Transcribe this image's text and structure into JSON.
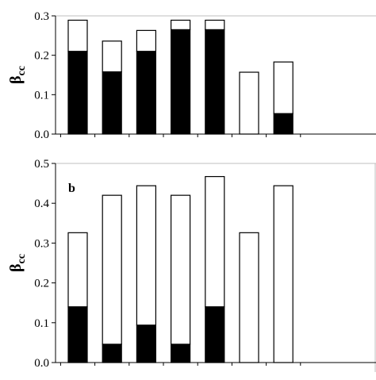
{
  "chart_data": [
    {
      "type": "bar",
      "stacked": true,
      "panel_label": "",
      "ylabel": "β",
      "ylabel_subscript": "cc",
      "ylim": [
        0,
        0.3
      ],
      "yticks": [
        "0.0",
        "0.1",
        "0.2",
        "0.3"
      ],
      "categories": [
        "",
        "",
        "",
        "",
        "",
        "",
        ""
      ],
      "series": [
        {
          "color": "#000000",
          "values": [
            0.21,
            0.158,
            0.21,
            0.265,
            0.265,
            0.0,
            0.052
          ]
        },
        {
          "color": "#ffffff",
          "values": [
            0.079,
            0.078,
            0.053,
            0.024,
            0.024,
            0.157,
            0.131
          ]
        }
      ],
      "grid": false,
      "legend": "none"
    },
    {
      "type": "bar",
      "stacked": true,
      "panel_label": "b",
      "ylabel": "β",
      "ylabel_subscript": "cc",
      "ylim": [
        0,
        0.5
      ],
      "yticks": [
        "0.0",
        "0.1",
        "0.2",
        "0.3",
        "0.4",
        "0.5"
      ],
      "categories": [
        "",
        "",
        "",
        "",
        "",
        "",
        ""
      ],
      "series": [
        {
          "color": "#000000",
          "values": [
            0.14,
            0.046,
            0.094,
            0.046,
            0.14,
            0.0,
            0.0
          ]
        },
        {
          "color": "#ffffff",
          "values": [
            0.186,
            0.374,
            0.35,
            0.374,
            0.327,
            0.326,
            0.444
          ]
        }
      ],
      "grid": false,
      "legend": "none"
    }
  ]
}
